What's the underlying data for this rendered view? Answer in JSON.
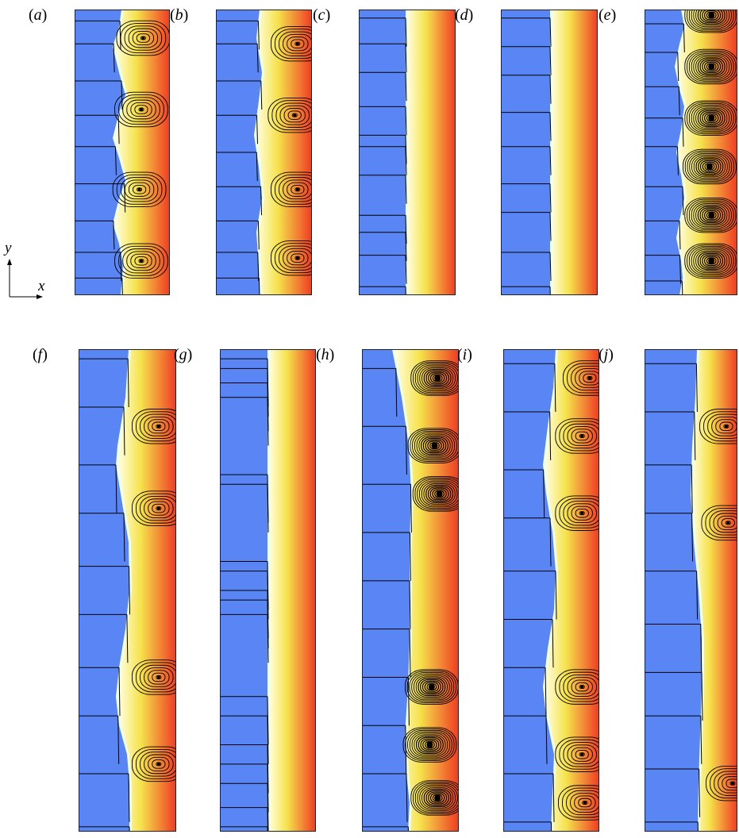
{
  "figure": {
    "panels": [
      {
        "id": "a",
        "label": "a",
        "x": [
          94,
          214
        ],
        "y": [
          12,
          372
        ],
        "interface": [
          [
            0.0,
            153
          ],
          [
            0.06,
            150
          ],
          [
            0.13,
            142
          ],
          [
            0.22,
            150
          ],
          [
            0.3,
            158
          ],
          [
            0.36,
            150
          ],
          [
            0.45,
            142
          ],
          [
            0.52,
            150
          ],
          [
            0.6,
            158
          ],
          [
            0.66,
            150
          ],
          [
            0.75,
            142
          ],
          [
            0.82,
            150
          ],
          [
            0.9,
            155
          ],
          [
            1.0,
            152
          ]
        ],
        "hlines": [
          0.04,
          0.12,
          0.25,
          0.37,
          0.48,
          0.61,
          0.74,
          0.85,
          0.94
        ],
        "vortices": [
          [
            0.72,
            0.1
          ],
          [
            0.7,
            0.35
          ],
          [
            0.68,
            0.63
          ],
          [
            0.7,
            0.88
          ]
        ],
        "vcolor": "#000"
      },
      {
        "id": "b",
        "label": "b",
        "x": [
          272,
          393
        ],
        "y": [
          12,
          372
        ],
        "interface": [
          [
            0.0,
            327
          ],
          [
            0.1,
            323
          ],
          [
            0.22,
            330
          ],
          [
            0.32,
            326
          ],
          [
            0.44,
            320
          ],
          [
            0.55,
            326
          ],
          [
            0.66,
            330
          ],
          [
            0.78,
            323
          ],
          [
            0.9,
            326
          ],
          [
            1.0,
            327
          ]
        ],
        "hlines": [
          0.04,
          0.12,
          0.25,
          0.37,
          0.5,
          0.62,
          0.74,
          0.85,
          0.94
        ],
        "vortices": [
          [
            0.85,
            0.12
          ],
          [
            0.82,
            0.37
          ],
          [
            0.85,
            0.63
          ],
          [
            0.85,
            0.87
          ]
        ],
        "vcolor": "#000"
      },
      {
        "id": "c",
        "label": "c",
        "x": [
          452,
          574
        ],
        "y": [
          12,
          372
        ],
        "interface": [
          [
            0.0,
            511
          ],
          [
            1.0,
            511
          ]
        ],
        "hlines": [
          0.03,
          0.12,
          0.22,
          0.34,
          0.44,
          0.48,
          0.58,
          0.72,
          0.78,
          0.86,
          0.97
        ],
        "vortices": [],
        "vcolor": "#000"
      },
      {
        "id": "d",
        "label": "d",
        "x": [
          631,
          753
        ],
        "y": [
          12,
          372
        ],
        "interface": [
          [
            0.0,
            693
          ],
          [
            1.0,
            693
          ]
        ],
        "hlines": [
          0.03,
          0.13,
          0.23,
          0.36,
          0.48,
          0.61,
          0.71,
          0.85,
          0.97
        ],
        "vortices": [],
        "vcolor": "#000"
      },
      {
        "id": "e",
        "label": "e",
        "x": [
          812,
          933
        ],
        "y": [
          12,
          372
        ],
        "interface": [
          [
            0.0,
            858
          ],
          [
            0.06,
            862
          ],
          [
            0.12,
            856
          ],
          [
            0.2,
            850
          ],
          [
            0.28,
            856
          ],
          [
            0.34,
            862
          ],
          [
            0.42,
            858
          ],
          [
            0.5,
            852
          ],
          [
            0.58,
            858
          ],
          [
            0.66,
            862
          ],
          [
            0.74,
            856
          ],
          [
            0.8,
            852
          ],
          [
            0.88,
            858
          ],
          [
            0.94,
            860
          ],
          [
            1.0,
            856
          ]
        ],
        "hlines": [
          0.05,
          0.15,
          0.27,
          0.38,
          0.48,
          0.62,
          0.74,
          0.86,
          0.95
        ],
        "vortices": [
          [
            0.72,
            0.02
          ],
          [
            0.72,
            0.2
          ],
          [
            0.72,
            0.38
          ],
          [
            0.7,
            0.55
          ],
          [
            0.72,
            0.72
          ],
          [
            0.72,
            0.88
          ]
        ],
        "vcolor": "#000",
        "dense": true
      },
      {
        "id": "f",
        "label": "f",
        "x": [
          99,
          222
        ],
        "y": [
          440,
          1048
        ],
        "interface": [
          [
            0.0,
            162
          ],
          [
            0.1,
            158
          ],
          [
            0.2,
            148
          ],
          [
            0.24,
            146
          ],
          [
            0.3,
            152
          ],
          [
            0.4,
            162
          ],
          [
            0.5,
            163
          ],
          [
            0.58,
            158
          ],
          [
            0.66,
            150
          ],
          [
            0.72,
            146
          ],
          [
            0.78,
            150
          ],
          [
            0.84,
            160
          ],
          [
            0.9,
            163
          ],
          [
            1.0,
            163
          ]
        ],
        "hlines": [
          0.02,
          0.12,
          0.24,
          0.34,
          0.45,
          0.55,
          0.66,
          0.76,
          0.88,
          0.99
        ],
        "vortices": [
          [
            0.82,
            0.16
          ],
          [
            0.82,
            0.33
          ],
          [
            0.82,
            0.68
          ],
          [
            0.82,
            0.86
          ]
        ],
        "vcolor": "#000"
      },
      {
        "id": "g",
        "label": "g",
        "x": [
          277,
          398
        ],
        "y": [
          440,
          1048
        ],
        "interface": [
          [
            0.0,
            337
          ],
          [
            1.0,
            337
          ]
        ],
        "hlines": [
          0.02,
          0.04,
          0.07,
          0.1,
          0.26,
          0.28,
          0.44,
          0.46,
          0.5,
          0.52,
          0.55,
          0.72,
          0.76,
          0.82,
          0.86,
          0.9,
          0.95,
          0.99
        ],
        "vortices": [],
        "vcolor": "#000"
      },
      {
        "id": "h",
        "label": "h",
        "x": [
          456,
          578
        ],
        "y": [
          440,
          1048
        ],
        "interface": [
          [
            0.0,
            494
          ],
          [
            0.1,
            506
          ],
          [
            0.2,
            515
          ],
          [
            0.3,
            518
          ],
          [
            0.4,
            516
          ],
          [
            0.5,
            516
          ],
          [
            0.6,
            516
          ],
          [
            0.7,
            514
          ],
          [
            0.8,
            510
          ],
          [
            0.88,
            512
          ],
          [
            0.94,
            516
          ],
          [
            1.0,
            514
          ]
        ],
        "hlines": [
          0.04,
          0.16,
          0.28,
          0.38,
          0.48,
          0.58,
          0.68,
          0.78,
          0.88,
          0.99
        ],
        "vortices": [
          [
            0.78,
            0.06
          ],
          [
            0.75,
            0.2
          ],
          [
            0.8,
            0.3
          ],
          [
            0.72,
            0.7
          ],
          [
            0.7,
            0.82
          ],
          [
            0.78,
            0.93
          ]
        ],
        "vcolor": "#000",
        "dense": true
      },
      {
        "id": "i",
        "label": "i",
        "x": [
          634,
          755
        ],
        "y": [
          440,
          1048
        ],
        "interface": [
          [
            0.0,
            700
          ],
          [
            0.08,
            697
          ],
          [
            0.16,
            690
          ],
          [
            0.24,
            684
          ],
          [
            0.3,
            688
          ],
          [
            0.38,
            696
          ],
          [
            0.46,
            700
          ],
          [
            0.54,
            698
          ],
          [
            0.62,
            690
          ],
          [
            0.7,
            684
          ],
          [
            0.76,
            688
          ],
          [
            0.84,
            698
          ],
          [
            0.92,
            696
          ],
          [
            1.0,
            694
          ]
        ],
        "hlines": [
          0.03,
          0.13,
          0.25,
          0.35,
          0.46,
          0.56,
          0.66,
          0.76,
          0.88,
          0.98
        ],
        "vortices": [
          [
            0.9,
            0.06
          ],
          [
            0.82,
            0.18
          ],
          [
            0.82,
            0.34
          ],
          [
            0.82,
            0.7
          ],
          [
            0.82,
            0.84
          ],
          [
            0.85,
            0.94
          ]
        ],
        "vcolor": "#000"
      },
      {
        "id": "j",
        "label": "j",
        "x": [
          812,
          933
        ],
        "y": [
          440,
          1048
        ],
        "interface": [
          [
            0.0,
            878
          ],
          [
            0.1,
            876
          ],
          [
            0.2,
            872
          ],
          [
            0.3,
            870
          ],
          [
            0.4,
            874
          ],
          [
            0.5,
            880
          ],
          [
            0.6,
            884
          ],
          [
            0.7,
            884
          ],
          [
            0.8,
            882
          ],
          [
            0.9,
            880
          ],
          [
            1.0,
            879
          ]
        ],
        "hlines": [
          0.03,
          0.13,
          0.24,
          0.34,
          0.46,
          0.57,
          0.67,
          0.76,
          0.87,
          0.98
        ],
        "vortices": [
          [
            0.88,
            0.16
          ],
          [
            0.9,
            0.36
          ],
          [
            0.95,
            0.9
          ]
        ],
        "vcolor": "#000"
      }
    ],
    "axis": {
      "x": "x",
      "y": "y"
    },
    "colors": {
      "cold": "#5a86f5",
      "interface": "#e8ffff",
      "warm_start": "#ffffe6",
      "warm_mid": "#f5e14a",
      "warm_end": "#ef3b22",
      "lines": "#000000"
    }
  }
}
